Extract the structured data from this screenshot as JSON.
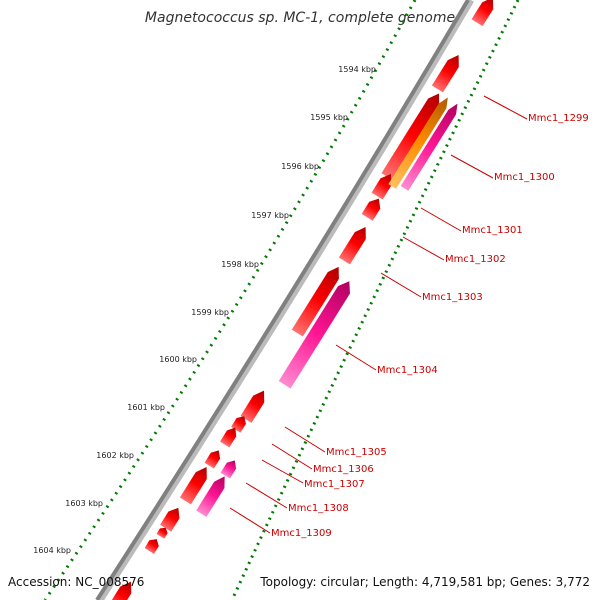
{
  "title": "Magnetococcus sp. MC-1, complete genome",
  "footer": {
    "accession": "Accession: NC_008576",
    "topology": "Topology: circular; Length: 4,719,581 bp; Genes: 3,772"
  },
  "colors": {
    "backbone": "#808080",
    "gene_red": "#ff0000",
    "gene_pink": "#ff1493",
    "gene_orange": "#ff8c00",
    "dots": "#007a00",
    "label": "#cc0000"
  },
  "ticks": [
    "1594 kbp",
    "1595 kbp",
    "1596 kbp",
    "1597 kbp",
    "1598 kbp",
    "1599 kbp",
    "1600 kbp",
    "1601 kbp",
    "1602 kbp",
    "1603 kbp",
    "1604 kbp"
  ],
  "genes": [
    "Mmc1_1299",
    "Mmc1_1300",
    "Mmc1_1301",
    "Mmc1_1302",
    "Mmc1_1303",
    "Mmc1_1304",
    "Mmc1_1305",
    "Mmc1_1306",
    "Mmc1_1307",
    "Mmc1_1308",
    "Mmc1_1309"
  ]
}
